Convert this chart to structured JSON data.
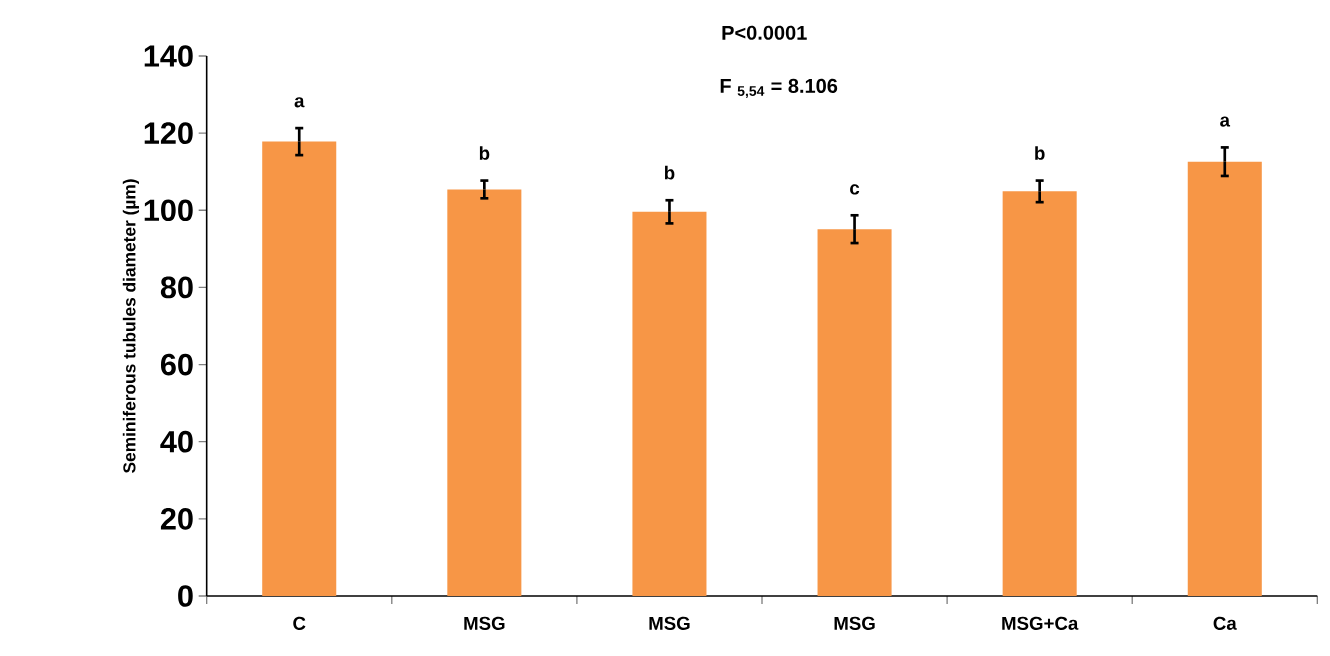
{
  "chart_data": {
    "type": "bar",
    "ylabel": "Seminiferous tubules diameter (µm)",
    "categories": [
      "C",
      "MSG",
      "MSG",
      "MSG",
      "MSG+Ca",
      "Ca"
    ],
    "values": [
      117.8,
      105.4,
      99.6,
      95.1,
      104.9,
      112.6
    ],
    "errors": [
      3.5,
      2.3,
      3.0,
      3.6,
      2.8,
      3.7
    ],
    "value_labels": [
      "a",
      "b",
      "b",
      "c",
      "b",
      "a"
    ],
    "color": "#f79646",
    "ylim": [
      0,
      140
    ],
    "yticks": [
      0,
      20,
      40,
      60,
      80,
      100,
      120,
      140
    ],
    "annotations": [
      "P<0.0001",
      "F $_{5,54}$ = 8.106"
    ]
  }
}
